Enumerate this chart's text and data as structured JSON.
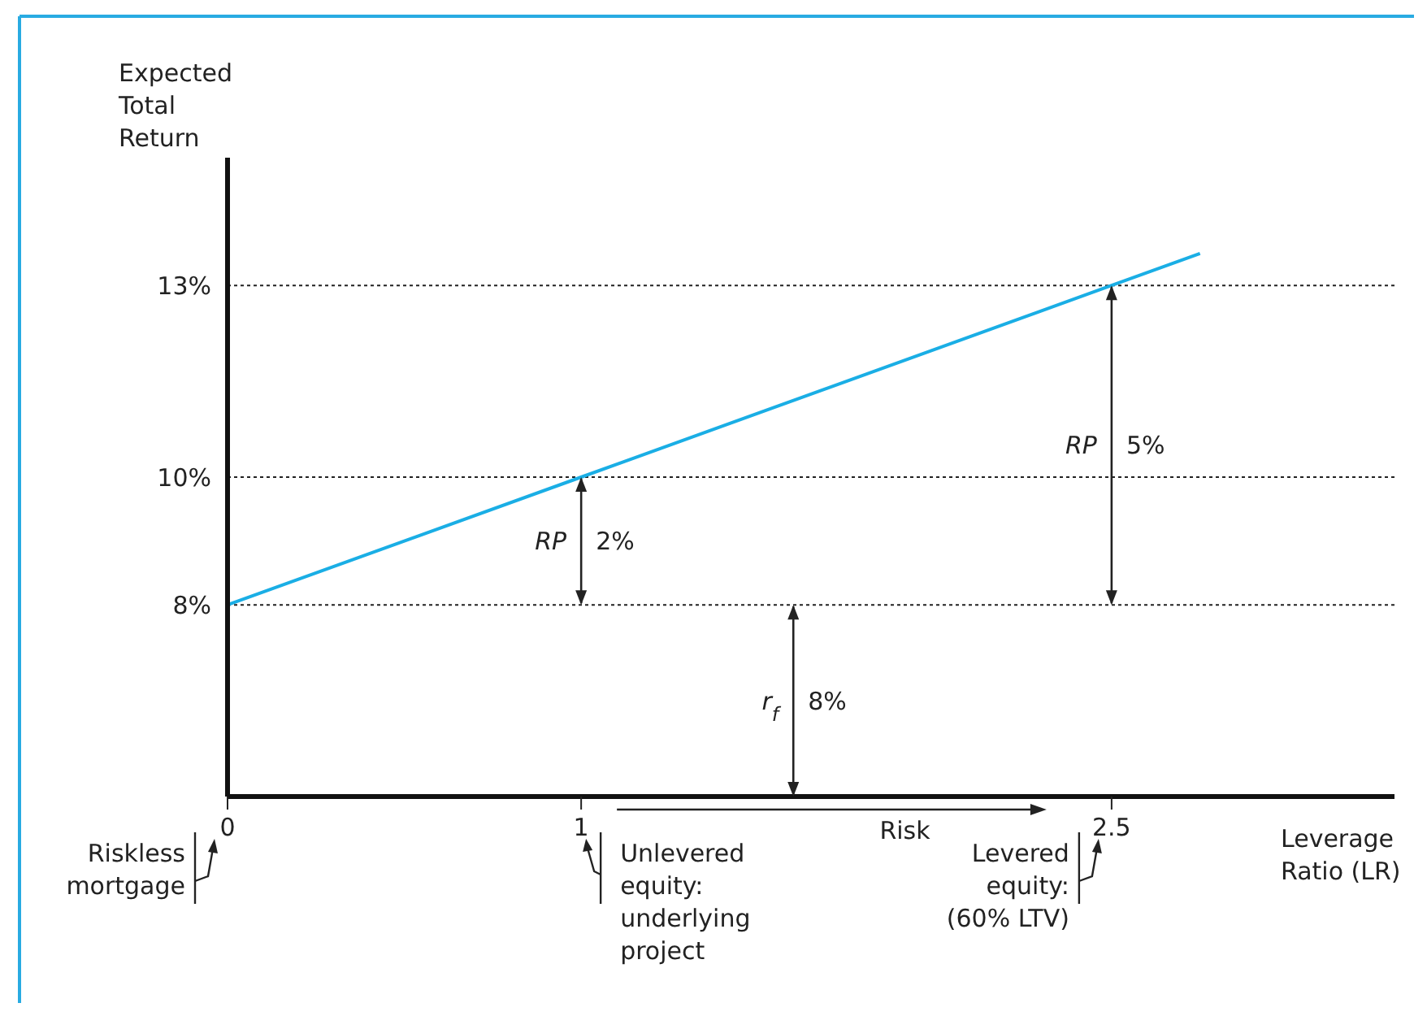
{
  "chart_data": {
    "type": "line",
    "xlabel": "Leverage\nRatio (LR)",
    "ylabel": "Expected\nTotal\nReturn",
    "x": [
      0,
      1,
      2.5,
      2.75
    ],
    "series": [
      {
        "color": "#1aaee5",
        "values": [
          8,
          10,
          13,
          13.5
        ]
      }
    ],
    "xlim": [
      0,
      3.3
    ],
    "ylim": [
      5,
      15
    ],
    "xticks": [
      0,
      1,
      2.5
    ],
    "yticks": [
      {
        "value": 8,
        "label": "8%"
      },
      {
        "value": 10,
        "label": "10%"
      },
      {
        "value": 13,
        "label": "13%"
      }
    ],
    "ref_lines": [
      {
        "axis": "y",
        "value": 13,
        "line_style": "dotted"
      },
      {
        "axis": "y",
        "value": 10,
        "line_style": "dotted"
      },
      {
        "axis": "y",
        "value": 8,
        "line_style": "dotted"
      }
    ],
    "annotations": [
      "RP",
      "2%",
      "RP",
      "5%",
      "r$_{f}$",
      "8%",
      "Risk",
      "Riskless\nmortgage",
      "Unlevered\nequity:\nunderlying\nproject",
      "Levered\nequity:\n(60% LTV)"
    ]
  }
}
